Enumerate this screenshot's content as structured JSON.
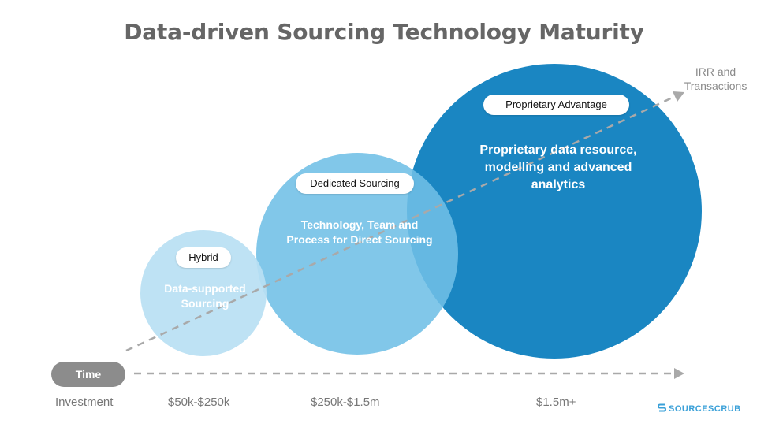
{
  "title": "Data-driven Sourcing Technology Maturity",
  "irr_label": "IRR and Transactions",
  "stages": [
    {
      "pill": "Hybrid",
      "body": "Data-supported Sourcing",
      "color": "#b9dff3"
    },
    {
      "pill": "Dedicated Sourcing",
      "body": "Technology, Team and Process for Direct Sourcing",
      "color": "#6fbfe6"
    },
    {
      "pill": "Proprietary Advantage",
      "body": "Proprietary data resource, modelling and advanced analytics",
      "color": "#1a86c2"
    }
  ],
  "time_label": "Time",
  "investment": {
    "label": "Investment",
    "ranges": [
      "$50k-$250k",
      "$250k-$1.5m",
      "$1.5m+"
    ]
  },
  "logo_text": "SOURCESCRUB"
}
